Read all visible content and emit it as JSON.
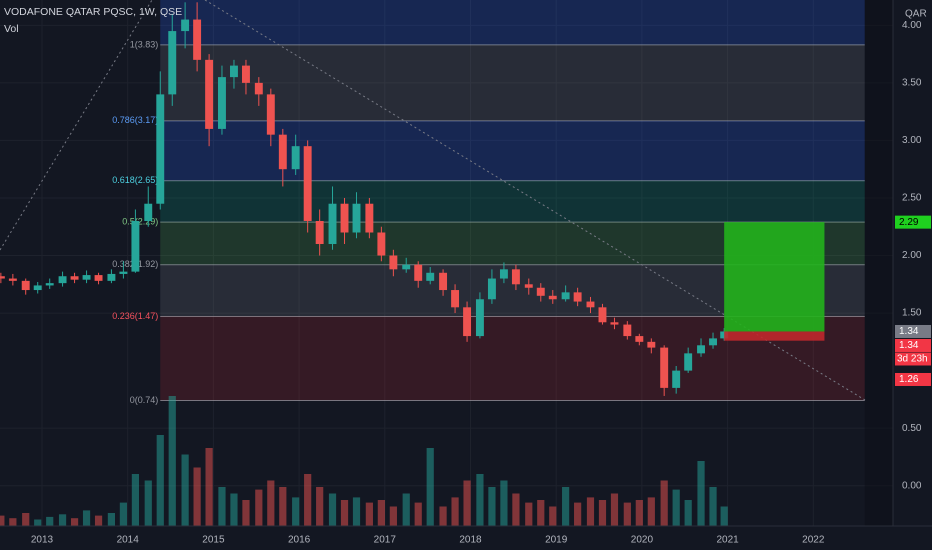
{
  "chart_data": {
    "type": "candlestick",
    "title": "VODAFONE QATAR PQSC, 1W, QSE",
    "volume_label": "Vol",
    "currency": "QAR",
    "up_color": "#26a69a",
    "down_color": "#ef5350",
    "xlim": [
      2012.51,
      2022.93
    ],
    "xticks": [
      2013,
      2014,
      2015,
      2016,
      2017,
      2018,
      2019,
      2020,
      2021,
      2022
    ],
    "ylim": [
      -0.35,
      4.22
    ],
    "yticks": [
      {
        "value": 4,
        "label": "4.00"
      },
      {
        "value": 3.5,
        "label": "3.50"
      },
      {
        "value": 3,
        "label": "3.00"
      },
      {
        "value": 2.5,
        "label": "2.50"
      },
      {
        "value": 2,
        "label": "2.00"
      },
      {
        "value": 1.5,
        "label": "1.50"
      },
      {
        "value": 0.5,
        "label": "0.50"
      },
      {
        "value": 0,
        "label": "0.00"
      }
    ],
    "x": [
      2012.52,
      2012.66,
      2012.81,
      2012.95,
      2013.09,
      2013.24,
      2013.38,
      2013.52,
      2013.66,
      2013.81,
      2013.95,
      2014.09,
      2014.24,
      2014.38,
      2014.52,
      2014.67,
      2014.81,
      2014.95,
      2015.1,
      2015.24,
      2015.38,
      2015.53,
      2015.67,
      2015.81,
      2015.96,
      2016.1,
      2016.24,
      2016.39,
      2016.53,
      2016.67,
      2016.82,
      2016.96,
      2017.1,
      2017.25,
      2017.39,
      2017.53,
      2017.68,
      2017.82,
      2017.96,
      2018.11,
      2018.25,
      2018.39,
      2018.53,
      2018.68,
      2018.82,
      2018.96,
      2019.11,
      2019.25,
      2019.4,
      2019.54,
      2019.68,
      2019.83,
      2019.97,
      2020.11,
      2020.26,
      2020.4,
      2020.54,
      2020.69,
      2020.83,
      2020.96
    ],
    "open": [
      1.82,
      1.8,
      1.78,
      1.7,
      1.74,
      1.76,
      1.82,
      1.79,
      1.83,
      1.78,
      1.84,
      1.86,
      2.3,
      2.45,
      3.4,
      3.95,
      4.05,
      3.7,
      3.1,
      3.55,
      3.65,
      3.5,
      3.4,
      3.05,
      2.75,
      2.95,
      2.3,
      2.1,
      2.45,
      2.2,
      2.45,
      2.2,
      2.0,
      1.88,
      1.92,
      1.78,
      1.85,
      1.7,
      1.55,
      1.3,
      1.62,
      1.8,
      1.88,
      1.75,
      1.72,
      1.65,
      1.62,
      1.68,
      1.6,
      1.55,
      1.42,
      1.4,
      1.3,
      1.25,
      1.2,
      0.85,
      1.0,
      1.15,
      1.22,
      1.28
    ],
    "high": [
      1.85,
      1.84,
      1.8,
      1.77,
      1.8,
      1.86,
      1.85,
      1.87,
      1.85,
      1.88,
      1.95,
      2.4,
      2.6,
      3.6,
      4.1,
      4.2,
      4.2,
      3.75,
      3.65,
      3.7,
      3.7,
      3.55,
      3.45,
      3.1,
      3.05,
      3.0,
      2.4,
      2.6,
      2.5,
      2.55,
      2.5,
      2.25,
      2.05,
      1.98,
      1.95,
      1.9,
      1.88,
      1.75,
      1.6,
      1.68,
      1.88,
      1.94,
      1.92,
      1.8,
      1.76,
      1.7,
      1.74,
      1.72,
      1.64,
      1.58,
      1.46,
      1.43,
      1.32,
      1.28,
      1.22,
      1.04,
      1.2,
      1.28,
      1.33,
      1.37
    ],
    "low": [
      1.76,
      1.74,
      1.66,
      1.67,
      1.71,
      1.73,
      1.76,
      1.76,
      1.75,
      1.76,
      1.8,
      1.85,
      2.25,
      2.4,
      3.3,
      3.8,
      3.6,
      2.95,
      3.05,
      3.45,
      3.4,
      3.3,
      2.95,
      2.6,
      2.7,
      2.2,
      2.0,
      2.05,
      2.1,
      2.15,
      2.15,
      1.95,
      1.82,
      1.85,
      1.72,
      1.75,
      1.65,
      1.5,
      1.25,
      1.28,
      1.58,
      1.76,
      1.7,
      1.66,
      1.6,
      1.58,
      1.6,
      1.56,
      1.5,
      1.4,
      1.36,
      1.27,
      1.22,
      1.15,
      0.78,
      0.8,
      0.98,
      1.12,
      1.19,
      1.26
    ],
    "close": [
      1.8,
      1.78,
      1.7,
      1.74,
      1.76,
      1.82,
      1.79,
      1.83,
      1.78,
      1.84,
      1.86,
      2.3,
      2.45,
      3.4,
      3.95,
      4.05,
      3.7,
      3.1,
      3.55,
      3.65,
      3.5,
      3.4,
      3.05,
      2.75,
      2.95,
      2.3,
      2.1,
      2.45,
      2.2,
      2.45,
      2.2,
      2.0,
      1.88,
      1.92,
      1.78,
      1.85,
      1.7,
      1.55,
      1.3,
      1.62,
      1.8,
      1.88,
      1.75,
      1.72,
      1.65,
      1.62,
      1.68,
      1.6,
      1.55,
      1.42,
      1.4,
      1.3,
      1.25,
      1.2,
      0.85,
      1.0,
      1.15,
      1.22,
      1.28,
      1.34
    ],
    "vlim": [
      0,
      100
    ],
    "volume": [
      8,
      6,
      10,
      5,
      7,
      9,
      6,
      12,
      8,
      10,
      18,
      40,
      35,
      70,
      100,
      55,
      45,
      60,
      30,
      25,
      20,
      28,
      35,
      30,
      22,
      40,
      30,
      25,
      20,
      22,
      18,
      20,
      15,
      25,
      18,
      60,
      15,
      22,
      35,
      40,
      30,
      35,
      25,
      18,
      20,
      15,
      30,
      18,
      22,
      20,
      25,
      18,
      20,
      22,
      35,
      28,
      20,
      50,
      30,
      15
    ],
    "fib": {
      "x_range": [
        2014.38,
        2022.6
      ],
      "levels": [
        {
          "label": "1(3.83)",
          "ratio": 1,
          "price": 3.83,
          "color": "#2962ff",
          "text_color": "#9598a1"
        },
        {
          "label": "0.786(3.17)",
          "ratio": 0.786,
          "price": 3.17,
          "color": "#787b86",
          "text_color": "#5b9cf6"
        },
        {
          "label": "0.618(2.65)",
          "ratio": 0.618,
          "price": 2.65,
          "color": "#2962ff",
          "text_color": "#4dd0e1"
        },
        {
          "label": "0.5(2.29)",
          "ratio": 0.5,
          "price": 2.29,
          "color": "#089981",
          "text_color": "#81c784"
        },
        {
          "label": "0.382(1.92)",
          "ratio": 0.382,
          "price": 1.92,
          "color": "#4caf50",
          "text_color": "#9598a1"
        },
        {
          "label": "0.236(1.47)",
          "ratio": 0.236,
          "price": 1.47,
          "color": "#787b86",
          "text_color": "#f7525f"
        },
        {
          "label": "0(0.74)",
          "ratio": 0,
          "price": 0.74,
          "color": "#b22833",
          "text_color": "#9598a1"
        }
      ]
    },
    "position": {
      "x_range": [
        2020.96,
        2022.13
      ],
      "target": 2.29,
      "entry": 1.34,
      "stop": 1.26,
      "countdown": "3d 23h"
    }
  }
}
